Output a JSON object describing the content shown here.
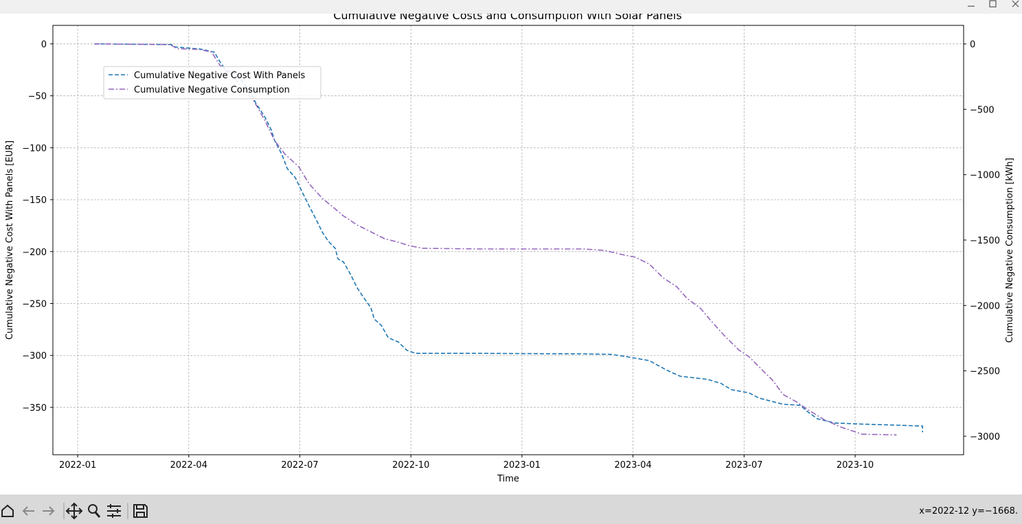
{
  "chart_data": {
    "type": "line",
    "title": "Cumulative Negative Costs and Consumption With Solar Panels",
    "xlabel": "Time",
    "ylabel": "Cumulative Negative Cost With Panels [EUR]",
    "y2label": "Cumulative Negative Consumption [kWh]",
    "xlim": [
      -0.67,
      23.93
    ],
    "xticks": [
      {
        "value": 0,
        "label": "2022-01"
      },
      {
        "value": 3,
        "label": "2022-04"
      },
      {
        "value": 6,
        "label": "2022-07"
      },
      {
        "value": 9,
        "label": "2022-10"
      },
      {
        "value": 12,
        "label": "2023-01"
      },
      {
        "value": 15,
        "label": "2023-04"
      },
      {
        "value": 18,
        "label": "2023-07"
      },
      {
        "value": 21,
        "label": "2023-10"
      }
    ],
    "ylim": [
      -395.6,
      17.8
    ],
    "yticks": [
      0,
      {
        "value": -50,
        "label": "−50"
      },
      {
        "value": -100,
        "label": "−100"
      },
      {
        "value": -150,
        "label": "−150"
      },
      {
        "value": -200,
        "label": "−200"
      },
      {
        "value": -250,
        "label": "−250"
      },
      {
        "value": -300,
        "label": "−300"
      },
      {
        "value": -350,
        "label": "−350"
      }
    ],
    "y2lim": [
      -3141.6,
      141.6
    ],
    "y2ticks": [
      0,
      {
        "value": -500,
        "label": "−500"
      },
      {
        "value": -1000,
        "label": "−1000"
      },
      {
        "value": -1500,
        "label": "−1500"
      },
      {
        "value": -2000,
        "label": "−2000"
      },
      {
        "value": -2500,
        "label": "−2500"
      },
      {
        "value": -3000,
        "label": "−3000"
      }
    ],
    "grid": true,
    "legend": "upper left",
    "series": [
      {
        "name": "Cumulative Negative Cost With Panels",
        "color": "#1f77b4",
        "style": "dashed",
        "x": [
          0.45,
          2.54,
          2.63,
          3.32,
          3.69,
          3.84,
          4.03,
          4.4,
          4.68,
          4.81,
          5.05,
          5.23,
          5.32,
          5.51,
          5.66,
          5.88,
          6.07,
          6.25,
          6.44,
          6.62,
          6.77,
          6.96,
          7.03,
          7.18,
          7.37,
          7.55,
          7.74,
          7.92,
          8.01,
          8.2,
          8.39,
          8.66,
          8.89,
          9.13,
          10.89,
          13.67,
          14.42,
          14.79,
          15.44,
          15.9,
          16.27,
          17.01,
          17.38,
          17.66,
          18.13,
          18.4,
          19.05,
          19.52,
          19.71,
          19.98,
          20.45,
          21.1,
          22.02,
          22.82,
          22.82
        ],
        "values": [
          0,
          -0.7,
          -3,
          -5,
          -8,
          -17,
          -27,
          -34,
          -47,
          -57,
          -70,
          -83,
          -93,
          -106,
          -120,
          -129,
          -143,
          -156,
          -169,
          -182,
          -190,
          -197,
          -207,
          -210,
          -222,
          -235,
          -245,
          -254,
          -265,
          -271,
          -283,
          -287,
          -295,
          -298,
          -298,
          -298.5,
          -299,
          -301,
          -305,
          -314,
          -320,
          -323,
          -327,
          -333,
          -336,
          -341,
          -347,
          -348,
          -354,
          -361,
          -365,
          -366,
          -367,
          -368,
          -374
        ]
      },
      {
        "name": "Cumulative Negative Consumption",
        "color": "#9467bd",
        "style": "dashdot",
        "axis": "y2",
        "x": [
          0.45,
          2.5,
          2.69,
          3.28,
          3.62,
          3.84,
          4.12,
          4.4,
          4.77,
          5.05,
          5.32,
          5.6,
          5.97,
          6.25,
          6.62,
          6.9,
          7.18,
          7.55,
          7.92,
          8.29,
          8.66,
          8.94,
          9.31,
          10.89,
          13.67,
          14.23,
          14.69,
          15.06,
          15.44,
          15.81,
          16.18,
          16.46,
          16.83,
          17.11,
          17.48,
          17.85,
          18.13,
          18.5,
          18.78,
          19.05,
          19.42,
          19.71,
          20.17,
          20.63,
          20.91,
          21.19,
          22.12
        ],
        "values": [
          0,
          -5,
          -37,
          -42,
          -63,
          -163,
          -215,
          -320,
          -441,
          -582,
          -740,
          -844,
          -939,
          -1070,
          -1185,
          -1248,
          -1316,
          -1385,
          -1437,
          -1490,
          -1516,
          -1542,
          -1563,
          -1568,
          -1568,
          -1579,
          -1610,
          -1631,
          -1684,
          -1788,
          -1857,
          -1946,
          -2024,
          -2119,
          -2234,
          -2339,
          -2392,
          -2496,
          -2575,
          -2680,
          -2738,
          -2795,
          -2874,
          -2932,
          -2958,
          -2985,
          -2990
        ]
      }
    ]
  },
  "window": {
    "status": "x=2022-12 y=−1668."
  }
}
